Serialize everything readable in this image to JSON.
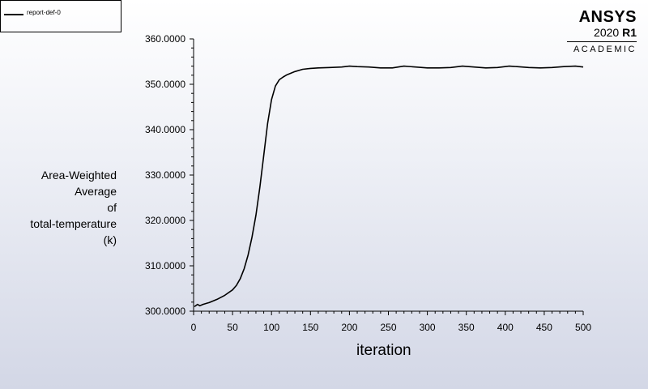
{
  "legend": {
    "label": "report-def-0"
  },
  "logo": {
    "name": "ANSYS",
    "version": "2020",
    "release": "R1",
    "edition": "ACADEMIC"
  },
  "ylabel_lines": [
    "Area-Weighted",
    "Average",
    "of",
    "total-temperature",
    "(k)"
  ],
  "xlabel": "iteration",
  "chart_data": {
    "type": "line",
    "xlabel": "iteration",
    "ylabel": "Area-Weighted Average of total-temperature (k)",
    "xlim": [
      0,
      500
    ],
    "ylim": [
      300,
      360
    ],
    "xticks": [
      0,
      50,
      100,
      150,
      200,
      250,
      300,
      350,
      400,
      450,
      500
    ],
    "yticks": [
      300,
      310,
      320,
      330,
      340,
      350,
      360
    ],
    "ytick_labels": [
      "300.0000",
      "310.0000",
      "320.0000",
      "330.0000",
      "340.0000",
      "350.0000",
      "360.0000"
    ],
    "grid": false,
    "legend_position": "top-left",
    "series": [
      {
        "name": "report-def-0",
        "color": "#000000",
        "x": [
          1,
          5,
          8,
          12,
          20,
          30,
          40,
          50,
          55,
          60,
          65,
          70,
          75,
          80,
          85,
          90,
          95,
          100,
          105,
          110,
          115,
          120,
          130,
          140,
          150,
          160,
          175,
          190,
          200,
          210,
          225,
          240,
          255,
          270,
          285,
          300,
          315,
          330,
          345,
          360,
          375,
          390,
          405,
          415,
          430,
          445,
          460,
          475,
          490,
          500
        ],
        "y": [
          301.0,
          301.5,
          301.2,
          301.5,
          301.9,
          302.6,
          303.5,
          304.7,
          305.7,
          307.2,
          309.4,
          312.4,
          316.3,
          321.2,
          327.3,
          334.3,
          341.4,
          346.6,
          349.6,
          351.0,
          351.6,
          352.1,
          352.8,
          353.3,
          353.5,
          353.6,
          353.7,
          353.8,
          354.0,
          353.9,
          353.8,
          353.6,
          353.6,
          354.0,
          353.8,
          353.6,
          353.6,
          353.7,
          354.0,
          353.8,
          353.6,
          353.7,
          354.0,
          353.9,
          353.7,
          353.6,
          353.7,
          353.9,
          354.0,
          353.8
        ]
      }
    ]
  }
}
